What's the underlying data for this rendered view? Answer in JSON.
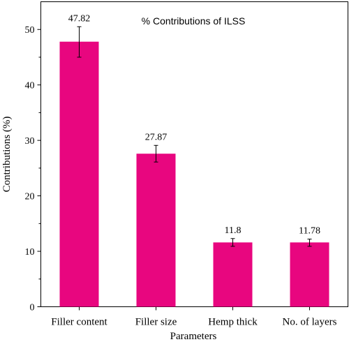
{
  "chart_data": {
    "type": "bar",
    "title": "% Contributions of ILSS",
    "xlabel": "Parameters",
    "ylabel": "Contributions (%)",
    "categories": [
      "Filler content",
      "Filler size",
      "Hemp thick",
      "No. of layers"
    ],
    "values": [
      47.82,
      27.87,
      11.8,
      11.78
    ],
    "value_labels": [
      "47.82",
      "27.87",
      "11.8",
      "11.78"
    ],
    "bar_heights": [
      47.8,
      27.6,
      11.6,
      11.6
    ],
    "error_low": [
      2.8,
      1.5,
      0.7,
      0.7
    ],
    "error_high": [
      2.7,
      1.5,
      0.7,
      0.6
    ],
    "ylim": [
      0,
      55
    ],
    "yticks": [
      0,
      10,
      20,
      30,
      40,
      50
    ],
    "ytick_labels": [
      "0",
      "10",
      "20",
      "30",
      "40",
      "50"
    ],
    "bar_color": "#e8067f",
    "grid": false,
    "legend": "none"
  }
}
